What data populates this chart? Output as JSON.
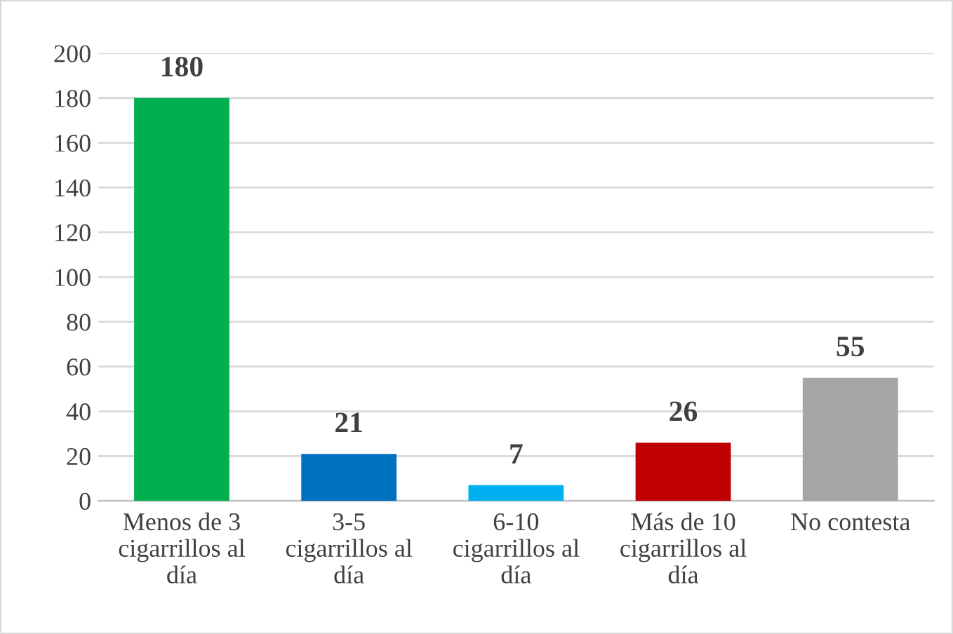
{
  "chart_data": {
    "type": "bar",
    "categories": [
      "Menos de 3\ncigarrillos al\ndía",
      "3-5\ncigarrillos al\ndía",
      "6-10\ncigarrillos al\ndía",
      "Más de 10\ncigarrillos al\ndía",
      "No contesta"
    ],
    "values": [
      180,
      21,
      7,
      26,
      55
    ],
    "colors": [
      "#00b050",
      "#0070c0",
      "#00b0f0",
      "#c00000",
      "#a5a5a5"
    ],
    "ylim": [
      0,
      200
    ],
    "yticks": [
      0,
      20,
      40,
      60,
      80,
      100,
      120,
      140,
      160,
      180,
      200
    ],
    "grid": "y",
    "data_labels": true
  }
}
